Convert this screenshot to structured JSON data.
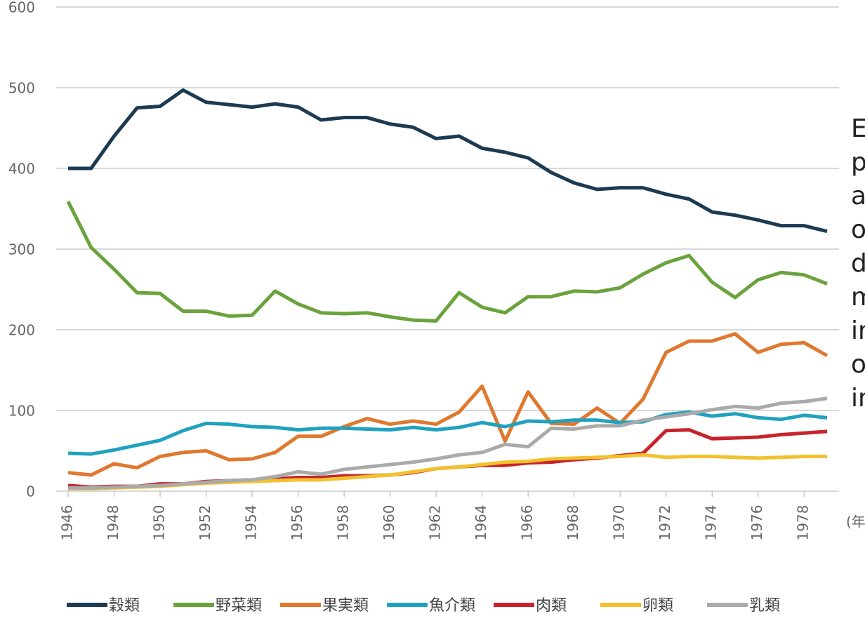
{
  "chart_data": {
    "type": "line",
    "x": [
      1946,
      1947,
      1948,
      1949,
      1950,
      1951,
      1952,
      1953,
      1954,
      1955,
      1956,
      1957,
      1958,
      1959,
      1960,
      1961,
      1962,
      1963,
      1964,
      1965,
      1966,
      1967,
      1968,
      1969,
      1970,
      1971,
      1972,
      1973,
      1974,
      1975,
      1976,
      1977,
      1978,
      1979
    ],
    "xlim": [
      1946,
      1979
    ],
    "xticks": [
      1946,
      1948,
      1950,
      1952,
      1954,
      1956,
      1958,
      1960,
      1962,
      1964,
      1966,
      1968,
      1970,
      1972,
      1974,
      1976,
      1978
    ],
    "x_label": "(年)",
    "ylim": [
      0,
      600
    ],
    "yticks": [
      0,
      100,
      200,
      300,
      400,
      500,
      600
    ],
    "grid": true,
    "legend": "bottom",
    "series": [
      {
        "name": "穀類",
        "color": "#1c3a52",
        "values": [
          400,
          400,
          440,
          475,
          477,
          497,
          482,
          479,
          476,
          480,
          476,
          460,
          463,
          463,
          455,
          451,
          437,
          440,
          425,
          420,
          413,
          395,
          382,
          374,
          376,
          376,
          368,
          362,
          346,
          342,
          336,
          329,
          329,
          322
        ]
      },
      {
        "name": "野菜類",
        "color": "#6aa33c",
        "values": [
          359,
          302,
          275,
          246,
          245,
          223,
          223,
          217,
          218,
          248,
          232,
          221,
          220,
          221,
          216,
          212,
          211,
          246,
          228,
          221,
          241,
          241,
          248,
          247,
          252,
          269,
          283,
          292,
          259,
          240,
          262,
          271,
          268,
          257
        ]
      },
      {
        "name": "果実類",
        "color": "#e0782e",
        "values": [
          23,
          20,
          34,
          29,
          43,
          48,
          50,
          39,
          40,
          48,
          68,
          68,
          80,
          90,
          83,
          87,
          83,
          98,
          130,
          62,
          123,
          84,
          83,
          103,
          84,
          114,
          172,
          186,
          186,
          195,
          172,
          182,
          184,
          168
        ]
      },
      {
        "name": "魚介類",
        "color": "#20a2bf",
        "values": [
          47,
          46,
          51,
          57,
          63,
          75,
          84,
          83,
          80,
          79,
          76,
          78,
          78,
          77,
          76,
          79,
          76,
          79,
          85,
          80,
          87,
          86,
          88,
          88,
          85,
          86,
          95,
          98,
          93,
          96,
          91,
          89,
          94,
          91
        ]
      },
      {
        "name": "肉類",
        "color": "#c8232b",
        "values": [
          7,
          5,
          6,
          6,
          9,
          9,
          12,
          13,
          14,
          15,
          17,
          17,
          19,
          19,
          20,
          23,
          28,
          30,
          32,
          32,
          35,
          36,
          39,
          41,
          44,
          47,
          75,
          76,
          65,
          66,
          67,
          70,
          72,
          74
        ]
      },
      {
        "name": "卵類",
        "color": "#f2c22e",
        "values": [
          3,
          3,
          4,
          5,
          6,
          8,
          10,
          11,
          12,
          13,
          14,
          14,
          16,
          18,
          20,
          24,
          28,
          30,
          33,
          36,
          37,
          40,
          41,
          42,
          43,
          45,
          42,
          43,
          43,
          42,
          41,
          42,
          43,
          43
        ]
      },
      {
        "name": "乳類",
        "color": "#aaaaaa",
        "values": [
          4,
          4,
          5,
          6,
          7,
          9,
          11,
          13,
          14,
          18,
          24,
          21,
          27,
          30,
          33,
          36,
          40,
          45,
          48,
          58,
          55,
          78,
          77,
          81,
          81,
          88,
          92,
          96,
          101,
          105,
          103,
          109,
          111,
          115
        ]
      }
    ]
  },
  "side_text": [
    "E",
    "p",
    "a",
    "o",
    "d",
    "m",
    "in",
    "o",
    "in"
  ]
}
